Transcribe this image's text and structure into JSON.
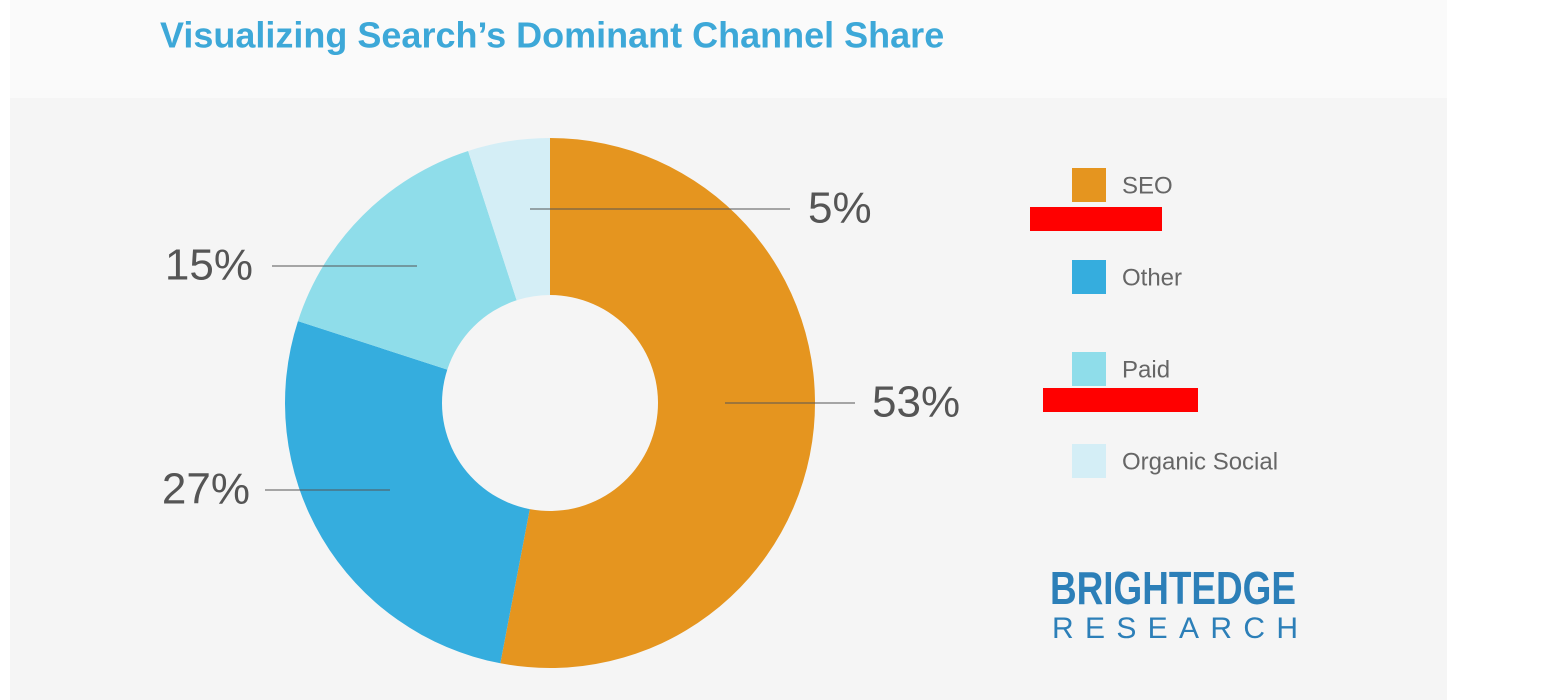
{
  "chart_data": {
    "type": "donut",
    "title": "Visualizing Search’s Dominant Channel Share",
    "categories": [
      "SEO",
      "Other",
      "Paid",
      "Organic Social"
    ],
    "values": [
      53,
      27,
      15,
      5
    ],
    "value_labels": [
      "53%",
      "27%",
      "15%",
      "5%"
    ],
    "colors": [
      "#E5951F",
      "#35ADDE",
      "#8FDDEA",
      "#D4EEF6"
    ],
    "brand": {
      "name": "BRIGHTEDGE",
      "subtitle": "RESEARCH"
    }
  }
}
